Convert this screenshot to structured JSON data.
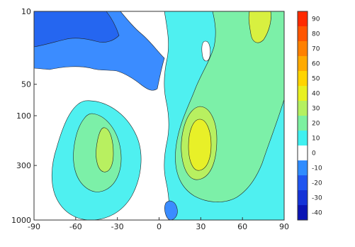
{
  "chart_data": {
    "type": "heatmap",
    "subtype": "filled-contour",
    "title": "",
    "xlabel": "",
    "ylabel": "",
    "x_ticks": [
      "-90",
      "-60",
      "-30",
      "0",
      "30",
      "60",
      "90"
    ],
    "y_ticks": [
      "10",
      "50",
      "100",
      "300",
      "1000"
    ],
    "xlim": [
      -90,
      90
    ],
    "ylim": [
      10,
      1000
    ],
    "y_axis": "pressure (reversed)",
    "colorbar": {
      "levels": [
        "90",
        "80",
        "70",
        "60",
        "50",
        "40",
        "30",
        "20",
        "10",
        "0",
        "-10",
        "-20",
        "-30",
        "-40"
      ],
      "colors": [
        "#ff2a00",
        "#ff5500",
        "#ff8000",
        "#ffaa00",
        "#ffd400",
        "#e8f020",
        "#b4f060",
        "#7cf0a0",
        "#40f0f0",
        "#ffffff",
        "#2f8cff",
        "#1f55f0",
        "#1433d8",
        "#0a14b4"
      ]
    },
    "contour_regions": [
      {
        "value_range": "-20 to -10",
        "location": "x -80 to -10, p 10-80",
        "note": "negative region top-left"
      },
      {
        "value_range": "-10 to 0",
        "location": "x -5 to 10, p 10-60",
        "note": "negative lobe near equator"
      },
      {
        "value_range": "20 to 30",
        "location": "x -60 to -20, p 120-500",
        "note": "southern hemisphere maximum"
      },
      {
        "value_range": "40 to 50",
        "location": "x 25 to 40, p 150-400",
        "note": "northern hemisphere core maximum"
      },
      {
        "value_range": "30 to 40",
        "location": "x 65 to 75, p 10-40",
        "note": "upper right maximum"
      }
    ]
  }
}
